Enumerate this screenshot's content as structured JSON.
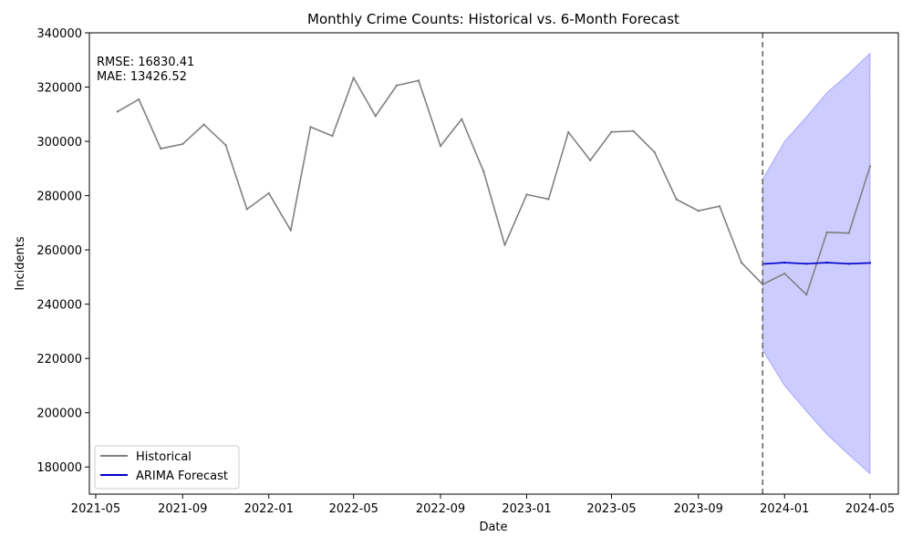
{
  "chart_data": {
    "type": "line",
    "title": "Monthly Crime Counts: Historical vs. 6-Month Forecast",
    "xlabel": "Date",
    "ylabel": "Incidents",
    "xlim": [
      "2021-04-22",
      "2024-06-10"
    ],
    "ylim": [
      170000,
      340000
    ],
    "x_ticks": [
      "2021-05",
      "2021-09",
      "2022-01",
      "2022-05",
      "2022-09",
      "2023-01",
      "2023-05",
      "2023-09",
      "2024-01",
      "2024-05"
    ],
    "y_ticks": [
      180000,
      200000,
      220000,
      240000,
      260000,
      280000,
      300000,
      320000,
      340000
    ],
    "annotations": [
      "RMSE: 16830.41",
      "MAE: 13426.52"
    ],
    "forecast_start": "2023-12-01",
    "legend_position": "lower-left",
    "grid": false,
    "series": [
      {
        "name": "Historical",
        "color": "#808080",
        "x": [
          "2021-06-01",
          "2021-07-01",
          "2021-08-01",
          "2021-09-01",
          "2021-10-01",
          "2021-11-01",
          "2021-12-01",
          "2022-01-01",
          "2022-02-01",
          "2022-03-01",
          "2022-04-01",
          "2022-05-01",
          "2022-06-01",
          "2022-07-01",
          "2022-08-01",
          "2022-09-01",
          "2022-10-01",
          "2022-11-01",
          "2022-12-01",
          "2023-01-01",
          "2023-02-01",
          "2023-03-01",
          "2023-04-01",
          "2023-05-01",
          "2023-06-01",
          "2023-07-01",
          "2023-08-01",
          "2023-09-01",
          "2023-10-01",
          "2023-11-01",
          "2023-12-01",
          "2024-01-01",
          "2024-02-01",
          "2024-03-01",
          "2024-04-01",
          "2024-05-01"
        ],
        "values": [
          311000,
          315500,
          297300,
          299000,
          306200,
          298600,
          275000,
          280900,
          267200,
          305300,
          302000,
          323400,
          309300,
          320600,
          322400,
          298300,
          308200,
          288900,
          261800,
          280400,
          278700,
          303400,
          293000,
          303500,
          303800,
          296000,
          278600,
          274400,
          276100,
          255300,
          247300,
          251300,
          243500,
          266500,
          266200,
          290800
        ]
      },
      {
        "name": "ARIMA Forecast",
        "color": "#0000cc",
        "x": [
          "2023-12-01",
          "2024-01-01",
          "2024-02-01",
          "2024-03-01",
          "2024-04-01",
          "2024-05-01"
        ],
        "values": [
          254800,
          255300,
          254900,
          255300,
          254900,
          255200
        ],
        "ci_lower": [
          223000,
          210000,
          200500,
          192000,
          184500,
          177500
        ],
        "ci_upper": [
          286000,
          300000,
          309000,
          318000,
          325000,
          332500
        ],
        "ci_color": "#0000ff"
      }
    ]
  }
}
